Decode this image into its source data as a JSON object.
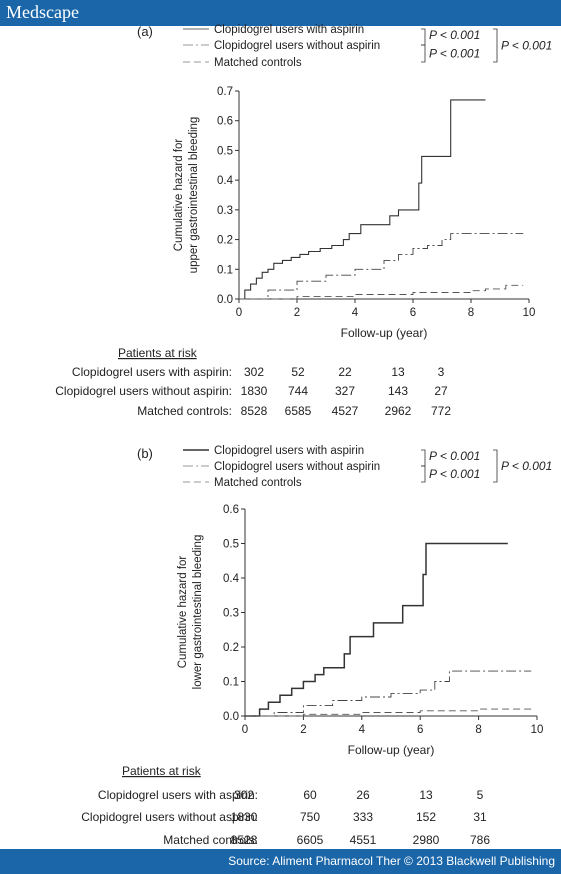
{
  "header": {
    "brand": "Medscape"
  },
  "footer": {
    "source": "Source: Aliment Pharmacol Ther © 2013 Blackwell Publishing"
  },
  "chart_data": [
    {
      "panel": "(a)",
      "type": "line",
      "xlabel": "Follow-up (year)",
      "ylabel": [
        "Cumulative hazard for",
        "upper gastrointestinal bleeding"
      ],
      "xlim": [
        0,
        10
      ],
      "ylim": [
        0,
        0.7
      ],
      "xticks": [
        0,
        2,
        4,
        6,
        8,
        10
      ],
      "yticks": [
        0.0,
        0.1,
        0.2,
        0.3,
        0.4,
        0.5,
        0.6,
        0.7
      ],
      "xtick_labels": [
        "0",
        "2",
        "4",
        "6",
        "8",
        "10"
      ],
      "ytick_labels": [
        "0.0",
        "0.1",
        "0.2",
        "0.3",
        "0.4",
        "0.5",
        "0.6",
        "0.7"
      ],
      "series": [
        {
          "name": "Clopidogrel users with aspirin",
          "style": "solid",
          "x": [
            0,
            0.2,
            0.4,
            0.6,
            0.8,
            1.0,
            1.2,
            1.5,
            1.8,
            2.1,
            2.4,
            2.8,
            3.2,
            3.6,
            3.8,
            4.2,
            4.6,
            5.2,
            5.5,
            6.0,
            6.2,
            6.3,
            7.0,
            7.3,
            8.5
          ],
          "y": [
            0,
            0.03,
            0.05,
            0.07,
            0.09,
            0.1,
            0.12,
            0.13,
            0.14,
            0.15,
            0.16,
            0.17,
            0.18,
            0.2,
            0.22,
            0.25,
            0.25,
            0.28,
            0.3,
            0.3,
            0.39,
            0.48,
            0.48,
            0.67,
            0.67
          ]
        },
        {
          "name": "Clopidogrel users without aspirin",
          "style": "dashdot",
          "x": [
            0,
            1,
            2,
            3,
            4,
            5,
            5.5,
            6,
            6.5,
            7,
            7.3,
            8,
            9,
            9.8
          ],
          "y": [
            0,
            0.03,
            0.06,
            0.08,
            0.1,
            0.13,
            0.15,
            0.17,
            0.18,
            0.2,
            0.22,
            0.22,
            0.22,
            0.22
          ]
        },
        {
          "name": "Matched controls",
          "style": "dashed",
          "x": [
            0,
            2,
            4,
            6,
            8,
            8.5,
            9.2,
            9.8
          ],
          "y": [
            0,
            0.008,
            0.015,
            0.022,
            0.028,
            0.034,
            0.046,
            0.046
          ]
        }
      ],
      "pvalues": [
        "P < 0.001",
        "P < 0.001",
        "P < 0.001"
      ],
      "risk_table": {
        "title": "Patients at risk",
        "rows": [
          {
            "label": "Clopidogrel users with aspirin:",
            "values": [
              "302",
              "52",
              "22",
              "13",
              "3"
            ]
          },
          {
            "label": "Clopidogrel users without aspirin:",
            "values": [
              "1830",
              "744",
              "327",
              "143",
              "27"
            ]
          },
          {
            "label": "Matched controls:",
            "values": [
              "8528",
              "6585",
              "4527",
              "2962",
              "772"
            ]
          }
        ]
      }
    },
    {
      "panel": "(b)",
      "type": "line",
      "xlabel": "Follow-up (year)",
      "ylabel": [
        "Cumulative hazard for",
        "lower gastrointestinal bleeding"
      ],
      "xlim": [
        0,
        10
      ],
      "ylim": [
        0,
        0.6
      ],
      "xticks": [
        0,
        2,
        4,
        6,
        8,
        10
      ],
      "yticks": [
        0.0,
        0.1,
        0.2,
        0.3,
        0.4,
        0.5,
        0.6
      ],
      "xtick_labels": [
        "0",
        "2",
        "4",
        "6",
        "8",
        "10"
      ],
      "ytick_labels": [
        "0.0",
        "0.1",
        "0.2",
        "0.3",
        "0.4",
        "0.5",
        "0.6"
      ],
      "series": [
        {
          "name": "Clopidogrel users with aspirin",
          "style": "solid",
          "x": [
            0,
            0.5,
            0.8,
            1.2,
            1.6,
            2.0,
            2.4,
            2.7,
            3.0,
            3.4,
            3.6,
            4.0,
            4.4,
            4.9,
            5.4,
            6.0,
            6.1,
            6.2,
            9.0
          ],
          "y": [
            0,
            0.02,
            0.04,
            0.06,
            0.08,
            0.1,
            0.12,
            0.14,
            0.14,
            0.18,
            0.23,
            0.23,
            0.27,
            0.27,
            0.32,
            0.32,
            0.41,
            0.5,
            0.5
          ]
        },
        {
          "name": "Clopidogrel users without aspirin",
          "style": "dashdot",
          "x": [
            0,
            1,
            2,
            3,
            4,
            5,
            6,
            6.5,
            7,
            8,
            9.8
          ],
          "y": [
            0,
            0.01,
            0.03,
            0.045,
            0.055,
            0.065,
            0.075,
            0.1,
            0.13,
            0.13,
            0.13
          ]
        },
        {
          "name": "Matched controls",
          "style": "dashed",
          "x": [
            0,
            2,
            4,
            6,
            8,
            9.8
          ],
          "y": [
            0,
            0.005,
            0.01,
            0.015,
            0.02,
            0.022
          ]
        }
      ],
      "pvalues": [
        "P < 0.001",
        "P < 0.001",
        "P < 0.001"
      ],
      "risk_table": {
        "title": "Patients at risk",
        "rows": [
          {
            "label": "Clopidogrel users with aspirin:",
            "values": [
              "302",
              "60",
              "26",
              "13",
              "5"
            ]
          },
          {
            "label": "Clopidogrel users without aspirin:",
            "values": [
              "1830",
              "750",
              "333",
              "152",
              "31"
            ]
          },
          {
            "label": "Matched controls:",
            "values": [
              "8528",
              "6605",
              "4551",
              "2980",
              "786"
            ]
          }
        ]
      }
    }
  ]
}
